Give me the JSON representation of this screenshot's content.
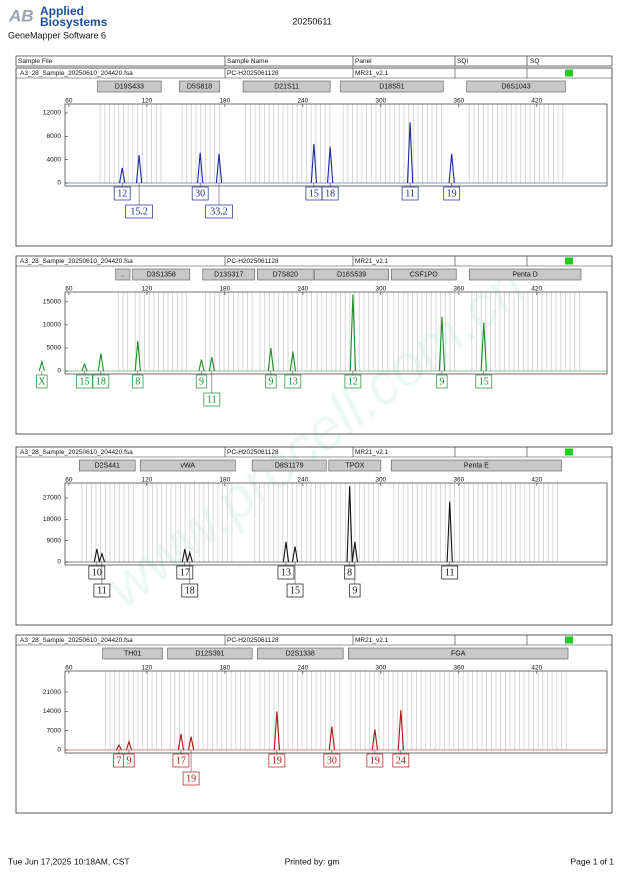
{
  "header": {
    "brand": [
      "Applied",
      "Biosystems"
    ],
    "software": "GeneMapper Software 6",
    "date": "20250611"
  },
  "columns": [
    "Sample File",
    "Sample Name",
    "Panel",
    "SQI",
    "SQ"
  ],
  "watermark": "www.procell.com.cn",
  "panels": [
    {
      "file": "A3_28_Sample_20250610_204420.fsa",
      "sample": "PC-H2025061128",
      "panel_name": "MR21_v2.1",
      "color": "#1a2a9a",
      "xlim": [
        57,
        474
      ],
      "xticks": [
        60,
        120,
        180,
        240,
        300,
        360,
        420
      ],
      "ylim": [
        0,
        13200
      ],
      "yticks": [
        0,
        4000,
        8000,
        12000
      ],
      "markers": [
        {
          "name": "D19S433",
          "range": [
            82,
            131
          ]
        },
        {
          "name": "D5S818",
          "range": [
            145,
            176
          ]
        },
        {
          "name": "D21S11",
          "range": [
            194,
            261
          ]
        },
        {
          "name": "D18S51",
          "range": [
            269,
            348
          ]
        },
        {
          "name": "D6S1043",
          "range": [
            366,
            442
          ]
        }
      ],
      "peaks": [
        {
          "allele": "15.2",
          "bp": 114,
          "height": 4800
        },
        {
          "allele": "12",
          "bp": 101,
          "height": 2600
        },
        {
          "allele": "30",
          "bp": 161,
          "height": 5200
        },
        {
          "allele": "33.2",
          "bp": 175.5,
          "height": 5000
        },
        {
          "allele": "15",
          "bp": 248.5,
          "height": 6700
        },
        {
          "allele": "18",
          "bp": 261,
          "height": 6200
        },
        {
          "allele": "11",
          "bp": 322.5,
          "height": 10400
        },
        {
          "allele": "19",
          "bp": 354.5,
          "height": 5000
        }
      ]
    },
    {
      "file": "A3_28_Sample_20250610_204420.fsa",
      "sample": "PC-H2025061128",
      "panel_name": "MR21_v2.1",
      "color": "#1e8c2a",
      "xlim": [
        57,
        474
      ],
      "xticks": [
        60,
        120,
        180,
        240,
        300,
        360,
        420
      ],
      "ylim": [
        0,
        16700
      ],
      "yticks": [
        0,
        5000,
        10000,
        15000
      ],
      "markers": [
        {
          "name": "..",
          "range": [
            96,
            107
          ]
        },
        {
          "name": "D3S1358",
          "range": [
            109,
            153
          ]
        },
        {
          "name": "D13S317",
          "range": [
            163,
            203
          ]
        },
        {
          "name": "D7S820",
          "range": [
            205,
            248
          ]
        },
        {
          "name": "D16S539",
          "range": [
            249,
            306
          ]
        },
        {
          "name": "CSF1PO",
          "range": [
            308,
            358
          ]
        },
        {
          "name": "Penta D",
          "range": [
            368,
            454
          ]
        }
      ],
      "peaks": [
        {
          "allele": "X",
          "bp": 39.2,
          "height": 2000
        },
        {
          "allele": "15",
          "bp": 72,
          "height": 1500
        },
        {
          "allele": "18",
          "bp": 84.6,
          "height": 3800
        },
        {
          "allele": "8",
          "bp": 113,
          "height": 6500
        },
        {
          "allele": "9",
          "bp": 162,
          "height": 2500
        },
        {
          "allele": "11",
          "bp": 170,
          "height": 3000
        },
        {
          "allele": "9",
          "bp": 215.4,
          "height": 5000
        },
        {
          "allele": "13",
          "bp": 232.3,
          "height": 4200
        },
        {
          "allele": "12",
          "bp": 278.5,
          "height": 16600
        },
        {
          "allele": "9",
          "bp": 347,
          "height": 11800
        },
        {
          "allele": "15",
          "bp": 379.2,
          "height": 10500
        }
      ]
    },
    {
      "file": "A3_28_Sample_20250610_204420.fsa",
      "sample": "PC-H2025061128",
      "panel_name": "MR21_v2.1",
      "color": "#111111",
      "xlim": [
        57,
        474
      ],
      "xticks": [
        60,
        120,
        180,
        240,
        300,
        360,
        420
      ],
      "ylim": [
        0,
        32500
      ],
      "yticks": [
        0,
        9000,
        18000,
        27000
      ],
      "markers": [
        {
          "name": "D2S441",
          "range": [
            68,
            111
          ]
        },
        {
          "name": "vWA",
          "range": [
            115,
            188
          ]
        },
        {
          "name": "D8S1179",
          "range": [
            201,
            258
          ]
        },
        {
          "name": "TPOX",
          "range": [
            260,
            300
          ]
        },
        {
          "name": "Penta E",
          "range": [
            308,
            439
          ]
        }
      ],
      "peaks": [
        {
          "allele": "10",
          "bp": 81.5,
          "height": 5500
        },
        {
          "allele": "11",
          "bp": 85.4,
          "height": 3500
        },
        {
          "allele": "17",
          "bp": 149.2,
          "height": 5500
        },
        {
          "allele": "18",
          "bp": 153,
          "height": 4000
        },
        {
          "allele": "13",
          "bp": 227,
          "height": 8500
        },
        {
          "allele": "15",
          "bp": 234,
          "height": 6500
        },
        {
          "allele": "8",
          "bp": 276,
          "height": 32000
        },
        {
          "allele": "9",
          "bp": 280,
          "height": 8500
        },
        {
          "allele": "11",
          "bp": 353,
          "height": 25500
        }
      ]
    },
    {
      "file": "A3_28_Sample_20250610_204420.fsa",
      "sample": "PC-H2025061128",
      "panel_name": "MR21_v2.1",
      "color": "#b01515",
      "xlim": [
        57,
        474
      ],
      "xticks": [
        60,
        120,
        180,
        240,
        300,
        360,
        420
      ],
      "ylim": [
        0,
        27900
      ],
      "yticks": [
        0,
        7000,
        14000,
        21000
      ],
      "markers": [
        {
          "name": "TH01",
          "range": [
            86,
            132
          ]
        },
        {
          "name": "D12S391",
          "range": [
            136,
            201
          ]
        },
        {
          "name": "D2S1338",
          "range": [
            205,
            271
          ]
        },
        {
          "name": "FGA",
          "range": [
            275,
            444
          ]
        }
      ],
      "peaks": [
        {
          "allele": "7",
          "bp": 98.5,
          "height": 1800
        },
        {
          "allele": "9",
          "bp": 106.2,
          "height": 3000
        },
        {
          "allele": "17",
          "bp": 146.2,
          "height": 5800
        },
        {
          "allele": "19",
          "bp": 154,
          "height": 4800
        },
        {
          "allele": "19",
          "bp": 220,
          "height": 14000
        },
        {
          "allele": "30",
          "bp": 262.3,
          "height": 8500
        },
        {
          "allele": "19",
          "bp": 295.4,
          "height": 7500
        },
        {
          "allele": "24",
          "bp": 315.4,
          "height": 14500
        }
      ]
    }
  ],
  "footer": {
    "printed_on": "Tue Jun 17,2025 10:18AM, CST",
    "printed_by": "Printed by: gm",
    "page": "Page 1 of 1"
  }
}
